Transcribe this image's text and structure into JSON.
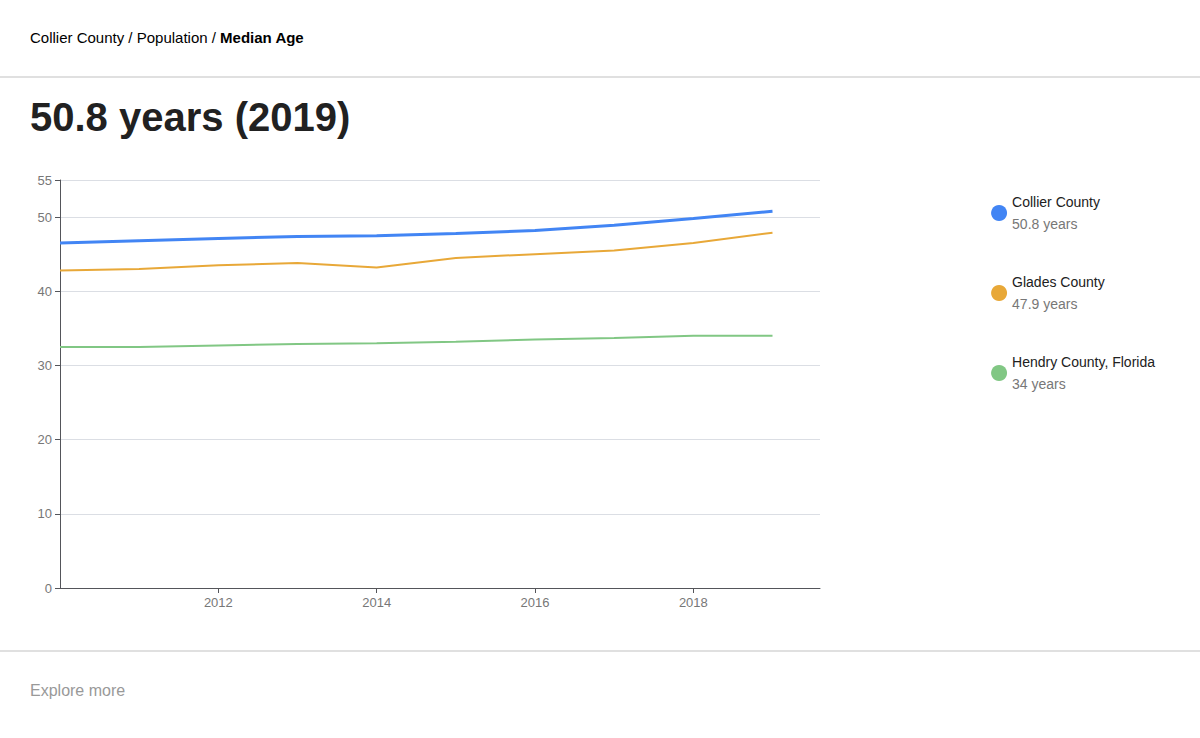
{
  "chart_data": {
    "type": "line",
    "title": "50.8 years (2019)",
    "annotations": [
      "Collier County / Population / ",
      "Median Age",
      "50.8 years",
      "47.9 years",
      "34 years",
      "Explore more"
    ],
    "x": [
      2010,
      2011,
      2012,
      2013,
      2014,
      2015,
      2016,
      2017,
      2018,
      2019
    ],
    "series": [
      {
        "name": "Collier County",
        "color": "#4285f4",
        "values": [
          46.5,
          46.8,
          47.1,
          47.4,
          47.5,
          47.8,
          48.2,
          48.9,
          49.8,
          50.8
        ]
      },
      {
        "name": "Glades County",
        "color": "#e8a838",
        "values": [
          42.8,
          43.0,
          43.5,
          43.8,
          43.2,
          44.5,
          45.0,
          45.5,
          46.5,
          47.9
        ]
      },
      {
        "name": "Hendry County, Florida",
        "color": "#81c784",
        "values": [
          32.5,
          32.5,
          32.7,
          32.9,
          33.0,
          33.2,
          33.5,
          33.7,
          34.0,
          34.0
        ]
      }
    ],
    "xlim": [
      2010,
      2019.6
    ],
    "xticks": [
      2012,
      2014,
      2016,
      2018
    ],
    "ylim": [
      0,
      55
    ],
    "yticks": [
      0,
      10,
      20,
      30,
      40,
      50
    ],
    "grid": true,
    "legend": "right"
  }
}
